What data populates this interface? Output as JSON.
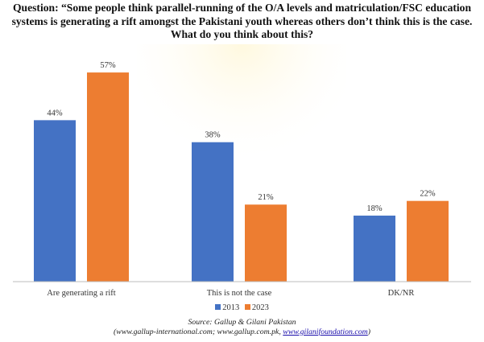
{
  "title_lines": [
    "Question: “Some people think parallel-running of the O/A levels and matriculation/FSC education",
    "systems is generating a rift amongst the Pakistani youth whereas others don’t think this is the case.",
    "What do you think about this?"
  ],
  "chart_data": {
    "type": "bar",
    "title": "Question: “Some people think parallel-running of the O/A levels and matriculation/FSC education systems is generating a rift amongst the Pakistani youth whereas others don’t think this is the case. What do you think about this?",
    "categories": [
      "Are generating a rift",
      "This is not the case",
      "DK/NR"
    ],
    "series": [
      {
        "name": "2013",
        "color": "#4472C4",
        "values": [
          44,
          38,
          18
        ],
        "labels": [
          "44%",
          "38%",
          "18%"
        ]
      },
      {
        "name": "2023",
        "color": "#ED7D31",
        "values": [
          57,
          21,
          22
        ],
        "labels": [
          "57%",
          "21%",
          "22%"
        ]
      }
    ],
    "xlabel": "",
    "ylabel": "",
    "ylim": [
      0,
      65
    ],
    "grid": false,
    "legend": "bottom-center"
  },
  "source": {
    "line1": "Source: Gallup & Gilani Pakistan",
    "line2_prefix": "(www.gallup-international.com; www.gallup.com.pk, ",
    "line2_link": "www.gilanifoundation.com",
    "line2_suffix": ")"
  }
}
